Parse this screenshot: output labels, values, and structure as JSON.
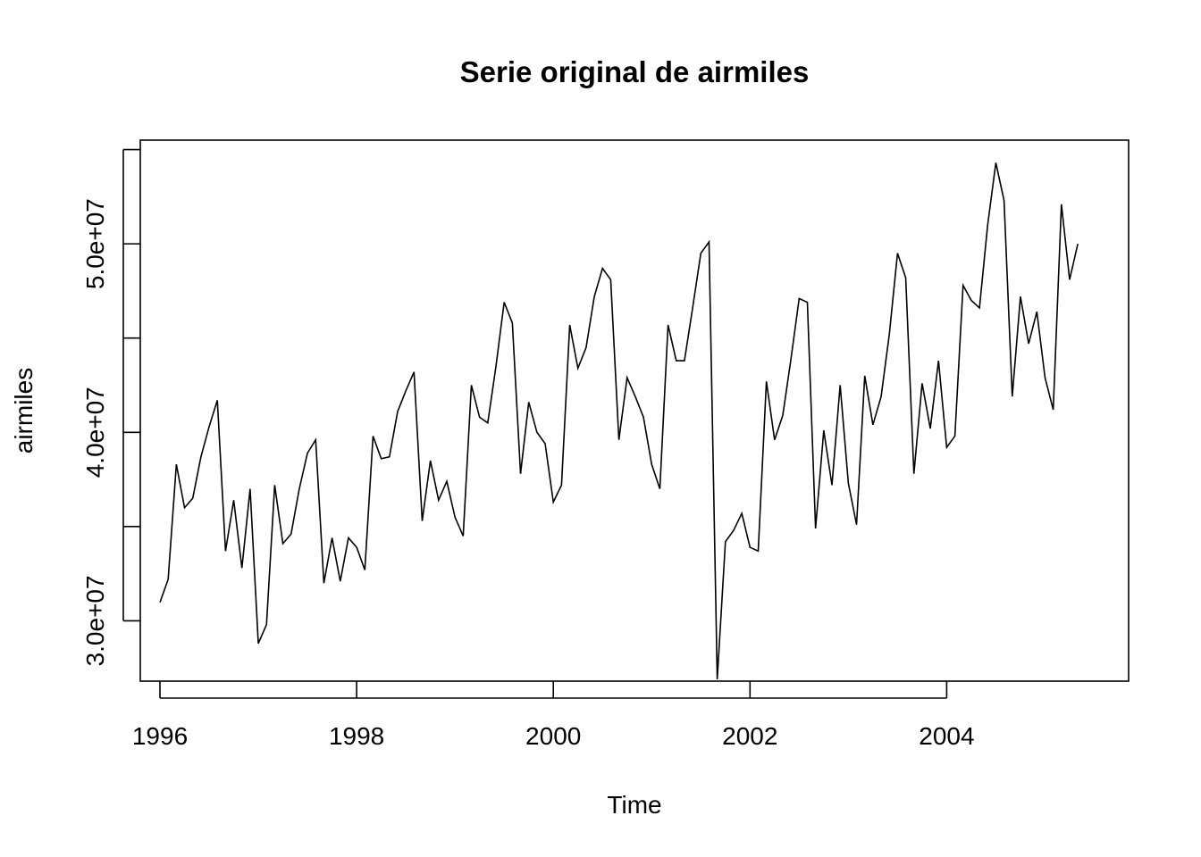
{
  "chart_data": {
    "type": "line",
    "title": "Serie original de airmiles",
    "xlabel": "Time",
    "ylabel": "airmiles",
    "x_start": 1996.0,
    "frequency": 12,
    "xlim": [
      1995.8,
      2005.85
    ],
    "ylim": [
      26800000.0,
      55500000.0
    ],
    "x_ticks": [
      1996,
      1998,
      2000,
      2002,
      2004
    ],
    "x_tick_labels": [
      "1996",
      "1998",
      "2000",
      "2002",
      "2004"
    ],
    "y_ticks": [
      30000000,
      35000000,
      40000000,
      45000000,
      50000000,
      55000000
    ],
    "y_tick_labels": [
      "3.0e+07",
      "",
      "4.0e+07",
      "",
      "5.0e+07",
      ""
    ],
    "grid": false,
    "line_color": "#000000",
    "series": [
      {
        "values": [
          30980000,
          32200000,
          38300000,
          36000000,
          36500000,
          38700000,
          40300000,
          41700000,
          33700000,
          36400000,
          32800000,
          37000000,
          28800000,
          29800000,
          37200000,
          34100000,
          34600000,
          37000000,
          38900000,
          39600000,
          32000000,
          34400000,
          32100000,
          34400000,
          33900000,
          32700000,
          39800000,
          38600000,
          38700000,
          41100000,
          42200000,
          43200000,
          35300000,
          38500000,
          36400000,
          37400000,
          35500000,
          34500000,
          42500000,
          40800000,
          40500000,
          43500000,
          46900000,
          45800000,
          37800000,
          41600000,
          40000000,
          39400000,
          36300000,
          37200000,
          45700000,
          43400000,
          44500000,
          47200000,
          48700000,
          48100000,
          39600000,
          42900000,
          41900000,
          40800000,
          38300000,
          37000000,
          45700000,
          43800000,
          43800000,
          46600000,
          49500000,
          50100000,
          26900000,
          34200000,
          34800000,
          35700000,
          33900000,
          33700000,
          42700000,
          39600000,
          40900000,
          43900000,
          47100000,
          46900000,
          34900000,
          40100000,
          37200000,
          42500000,
          37300000,
          35100000,
          43000000,
          40400000,
          41900000,
          45200000,
          49500000,
          48200000,
          37800000,
          42600000,
          40200000,
          43800000,
          39200000,
          39800000,
          47800000,
          47000000,
          46600000,
          51000000,
          54300000,
          52300000,
          41900000,
          47200000,
          44700000,
          46400000,
          42900000,
          41200000,
          52100000,
          48100000,
          50000000
        ]
      }
    ]
  }
}
